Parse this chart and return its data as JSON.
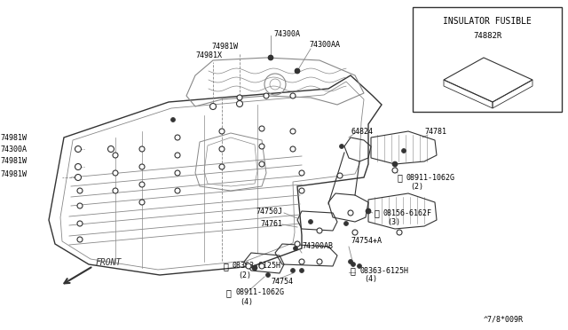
{
  "bg_color": "#ffffff",
  "line_color": "#888888",
  "dark_color": "#333333",
  "text_color": "#000000",
  "diagram_code": "^7/8*009R",
  "inset_title": "INSULATOR FUSIBLE",
  "inset_part": "74882R"
}
